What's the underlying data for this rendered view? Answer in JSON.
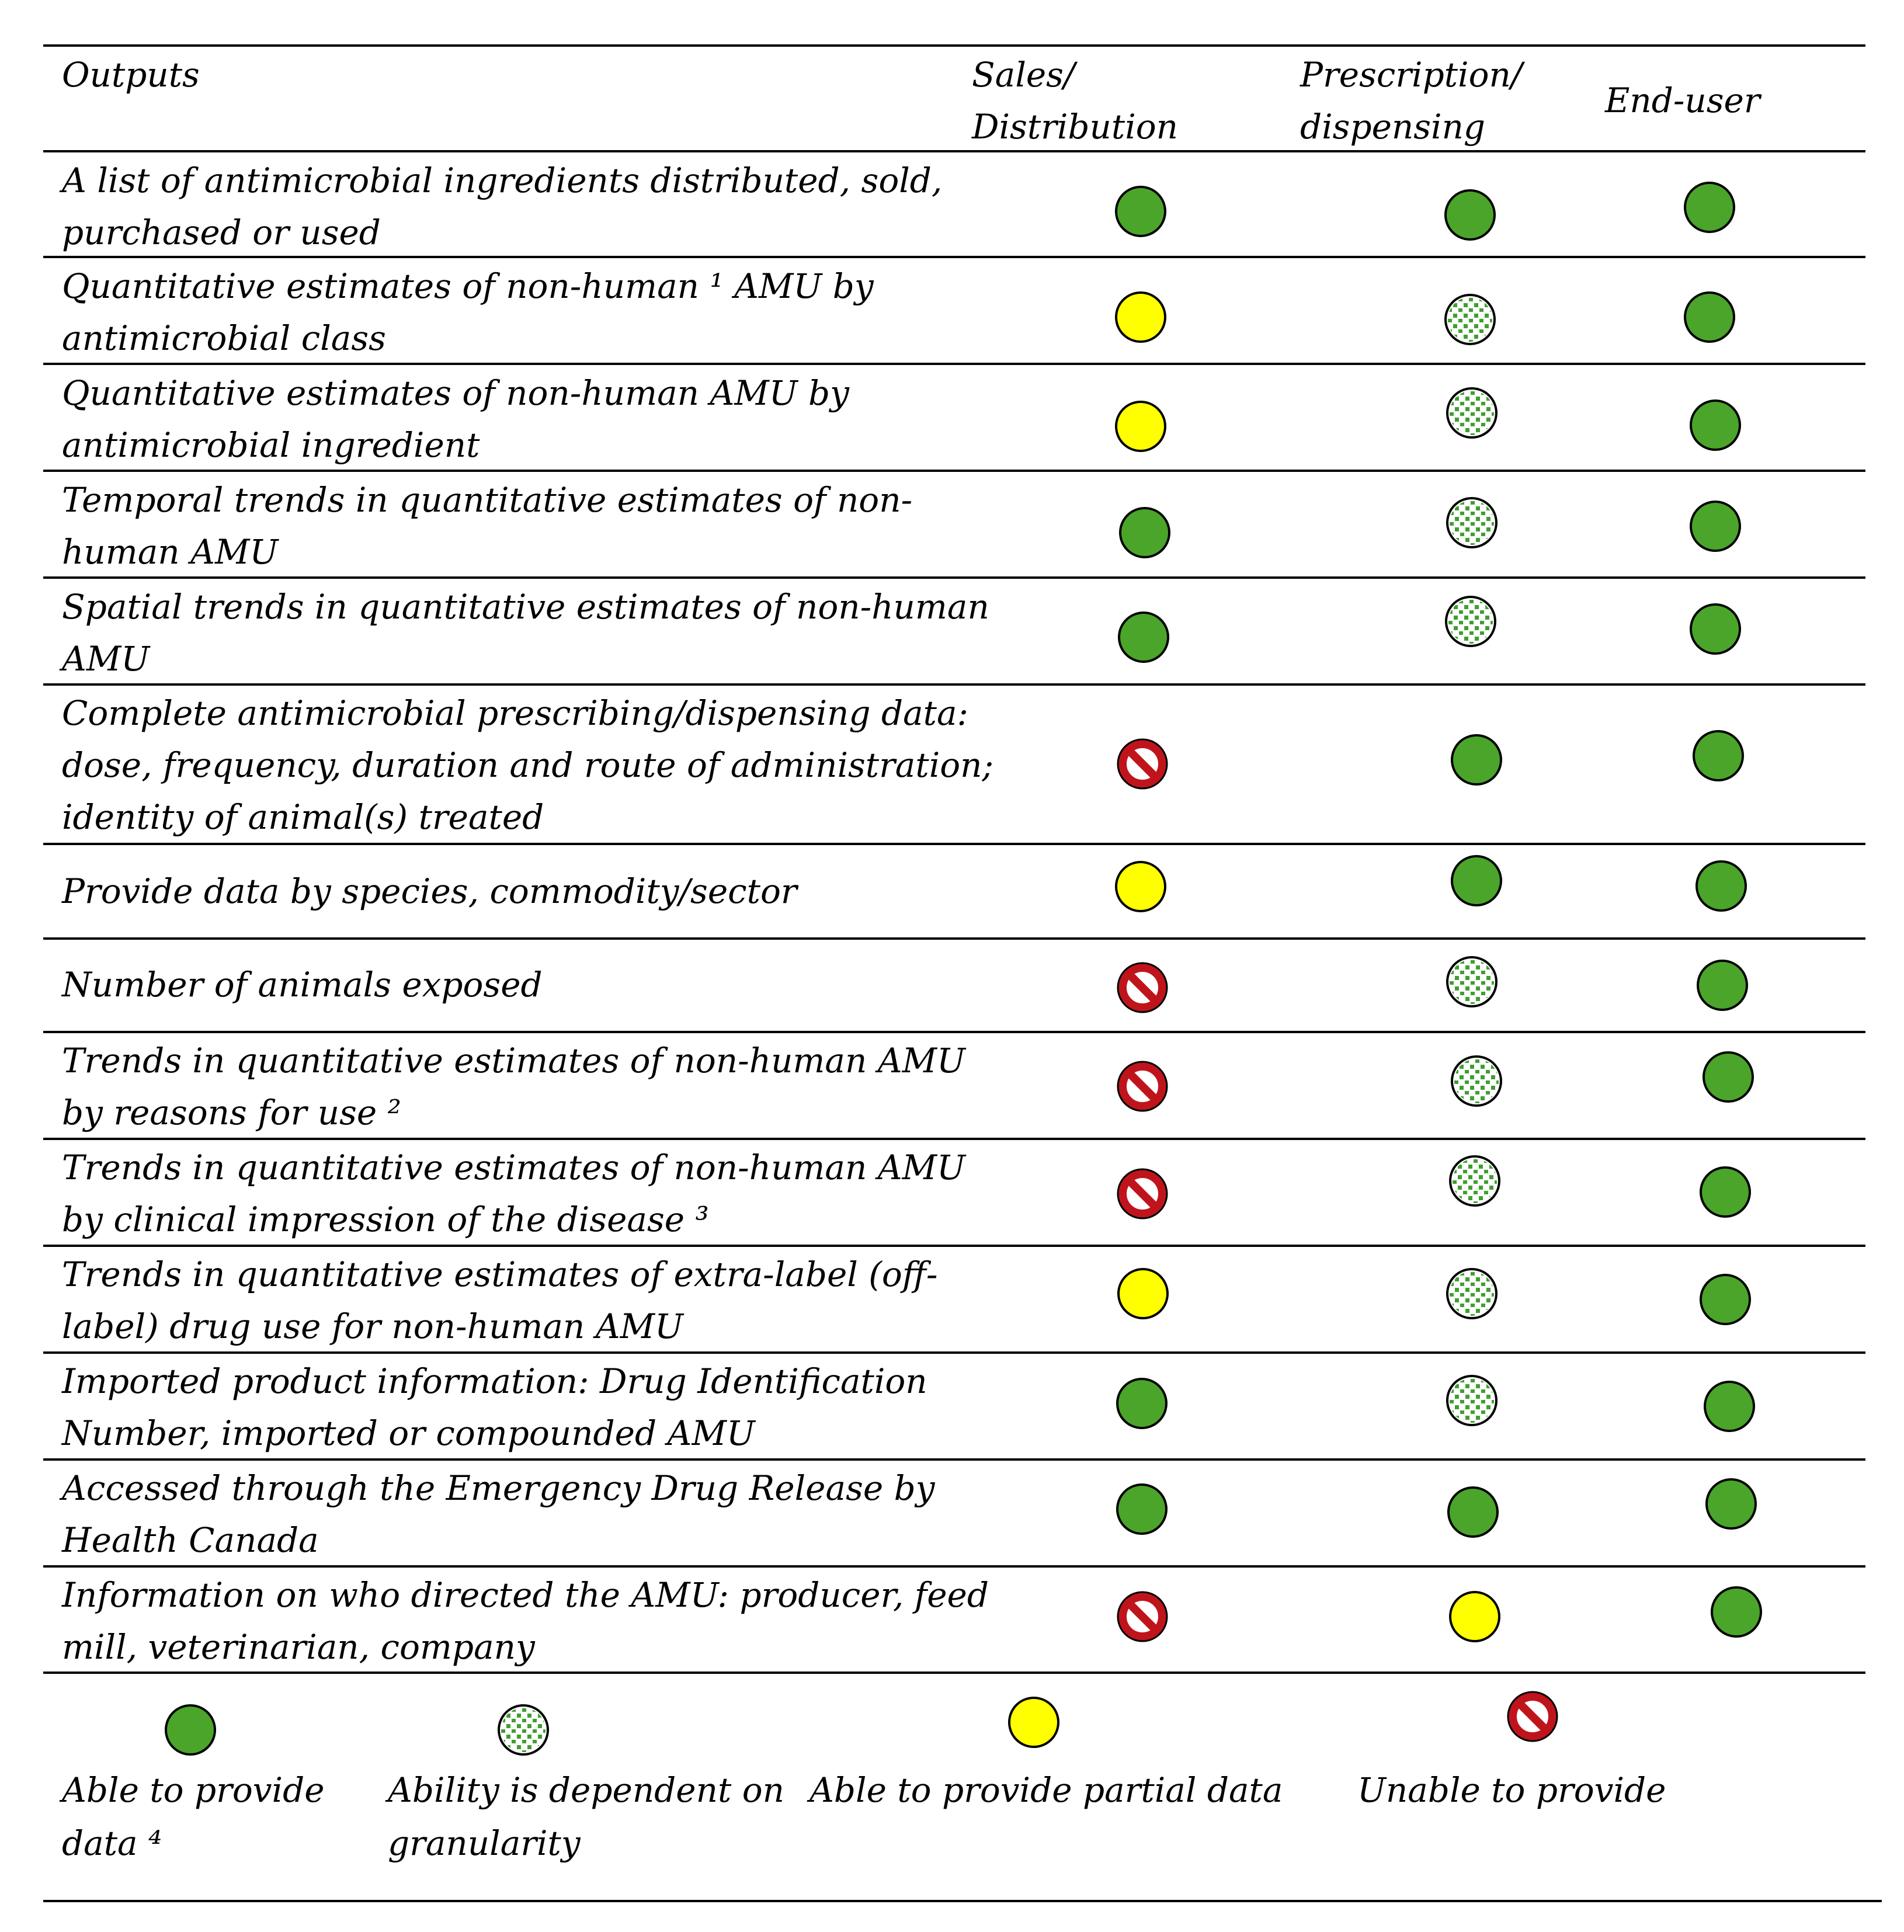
{
  "header": {
    "outputs": "Outputs",
    "sales_line1": "Sales/",
    "sales_line2": "Distribution",
    "prescription_line1": "Prescription/",
    "prescription_line2": "dispensing",
    "enduser": "End-user"
  },
  "status_colors": {
    "able": "#4aa52a",
    "partial": "#ffff00",
    "unable_ring": "#c0141c",
    "granularity_dots": "#3f9f2f"
  },
  "rows": [
    {
      "line1": "A list of antimicrobial ingredients distributed, sold,",
      "line2": "purchased or used",
      "sales": "able",
      "prescription": "able",
      "enduser": "able"
    },
    {
      "line1": "Quantitative estimates of non-human ¹ AMU by",
      "line2": "antimicrobial class",
      "sales": "partial",
      "prescription": "granularity",
      "enduser": "able"
    },
    {
      "line1": "Quantitative estimates of non-human AMU by",
      "line2": "antimicrobial ingredient",
      "sales": "partial",
      "prescription": "granularity",
      "enduser": "able"
    },
    {
      "line1": "Temporal trends in quantitative estimates of non-",
      "line2": "human AMU",
      "sales": "able",
      "prescription": "granularity",
      "enduser": "able"
    },
    {
      "line1": "Spatial trends in quantitative estimates of non-human",
      "line2": "AMU",
      "sales": "able",
      "prescription": "granularity",
      "enduser": "able"
    },
    {
      "line1": "Complete antimicrobial prescribing/dispensing data:",
      "line2": "dose, frequency, duration and route of administration;",
      "line3": "identity of animal(s) treated",
      "sales": "unable",
      "prescription": "able",
      "enduser": "able"
    },
    {
      "line1": "Provide data by species, commodity/sector",
      "sales": "partial",
      "prescription": "able",
      "enduser": "able"
    },
    {
      "line1": "Number of animals exposed",
      "sales": "unable",
      "prescription": "granularity",
      "enduser": "able"
    },
    {
      "line1": "Trends in quantitative estimates of non-human AMU",
      "line2": "by reasons for use ²",
      "sales": "unable",
      "prescription": "granularity",
      "enduser": "able"
    },
    {
      "line1": "Trends in quantitative estimates of non-human AMU",
      "line2": "by clinical impression of the disease ³",
      "sales": "unable",
      "prescription": "granularity",
      "enduser": "able"
    },
    {
      "line1": "Trends in quantitative estimates of extra-label (off-",
      "line2": "label) drug use for non-human AMU",
      "sales": "partial",
      "prescription": "granularity",
      "enduser": "able"
    },
    {
      "line1": "Imported product information: Drug Identification",
      "line2": "Number, imported or compounded AMU",
      "sales": "able",
      "prescription": "granularity",
      "enduser": "able"
    },
    {
      "line1": "Accessed through the Emergency Drug Release by",
      "line2": "Health Canada",
      "sales": "able",
      "prescription": "able",
      "enduser": "able"
    },
    {
      "line1": "Information on who directed the AMU: producer, feed",
      "line2": "mill, veterinarian, company",
      "sales": "unable",
      "prescription": "partial",
      "enduser": "able"
    }
  ],
  "legend": {
    "able_line1": "Able to provide",
    "able_line2": "data ⁴",
    "granularity_line1": "Ability is dependent on",
    "granularity_line2": "granularity",
    "partial": "Able to provide partial data",
    "unable": "Unable to provide"
  }
}
